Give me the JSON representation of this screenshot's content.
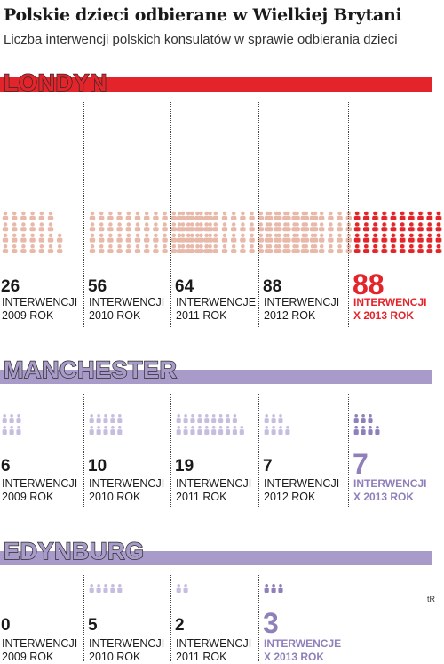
{
  "title": "Polskie dzieci odbierane w Wielkiej Brytani",
  "subtitle": "Liczba interwencji polskich konsulatów w sprawie odbierania dzieci",
  "credit": "tR",
  "colors": {
    "londyn_bar": "#e3242b",
    "londyn_label_fill": "#e3242b",
    "londyn_icon": "#e8b8a8",
    "londyn_icon_highlight": "#e3242b",
    "manchester_bar": "#a99bc9",
    "manchester_label_fill": "#a99bc9",
    "manchester_icon": "#c7bedf",
    "manchester_icon_highlight": "#8f7fba",
    "edynburg_bar": "#a99bc9",
    "edynburg_label_fill": "#a99bc9",
    "edynburg_icon": "#c7bedf",
    "edynburg_icon_highlight": "#8f7fba",
    "label_stroke": "#2a2a2a"
  },
  "chart_data": [
    {
      "type": "pictograph",
      "city": "LONDYN",
      "unit": "INTERWENCJI",
      "categories": [
        "2009 ROK",
        "2010 ROK",
        "2011 ROK",
        "2012 ROK",
        "X 2013 ROK"
      ],
      "values": [
        26,
        56,
        64,
        88,
        88
      ],
      "unit_labels": [
        "INTERWENCJI",
        "INTERWENCJI",
        "INTERWENCJE",
        "INTERWENCJI",
        "INTERWENCJI"
      ],
      "highlight_last": true
    },
    {
      "type": "pictograph",
      "city": "MANCHESTER",
      "unit": "INTERWENCJI",
      "categories": [
        "2009 ROK",
        "2010 ROK",
        "2011 ROK",
        "2012 ROK",
        "X 2013 ROK"
      ],
      "values": [
        6,
        10,
        19,
        7,
        7
      ],
      "unit_labels": [
        "INTERWENCJI",
        "INTERWENCJI",
        "INTERWENCJI",
        "INTERWENCJI",
        "INTERWENCJI"
      ],
      "highlight_last": true
    },
    {
      "type": "pictograph",
      "city": "EDYNBURG",
      "unit": "INTERWENCJI",
      "categories": [
        "2009 ROK",
        "2010 ROK",
        "2011 ROK",
        "X 2013 ROK"
      ],
      "values": [
        0,
        5,
        2,
        3
      ],
      "unit_labels": [
        "INTERWENCJI",
        "INTERWENCJI",
        "INTERWENCJI",
        "INTERWENCJE"
      ],
      "highlight_last": true
    }
  ]
}
